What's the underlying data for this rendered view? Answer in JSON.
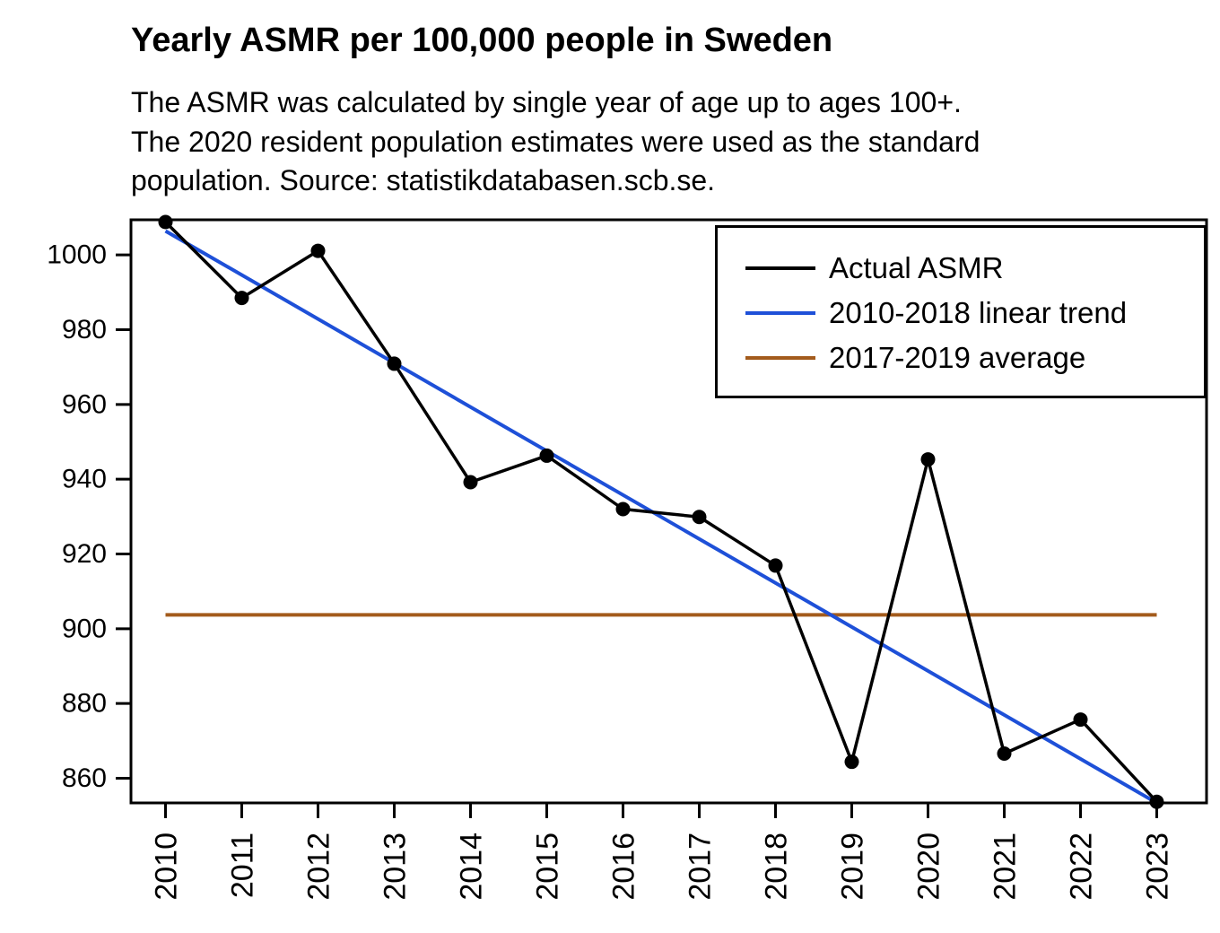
{
  "header": {
    "title": "Yearly ASMR per 100,000 people in Sweden",
    "subtitle_lines": [
      "The ASMR was calculated by single year of age up to ages 100+.",
      "The 2020 resident population estimates were used as the standard",
      "population. Source: statistikdatabasen.scb.se."
    ]
  },
  "chart_data": {
    "type": "line",
    "title": "Yearly ASMR per 100,000 people in Sweden",
    "xlabel": "",
    "ylabel": "",
    "grid": false,
    "legend_position": "top-right",
    "x": [
      2010,
      2011,
      2012,
      2013,
      2014,
      2015,
      2016,
      2017,
      2018,
      2019,
      2020,
      2021,
      2022,
      2023
    ],
    "xticks": [
      "2010",
      "2011",
      "2012",
      "2013",
      "2014",
      "2015",
      "2016",
      "2017",
      "2018",
      "2019",
      "2020",
      "2021",
      "2022",
      "2023"
    ],
    "yticks": [
      860,
      880,
      900,
      920,
      940,
      960,
      980,
      1000
    ],
    "ylim": [
      853.4,
      1009.4
    ],
    "xlim": [
      2010,
      2023
    ],
    "series": [
      {
        "name": "Actual ASMR",
        "color": "#000000",
        "marker": "circle",
        "values": [
          1008.8,
          988.5,
          1001.1,
          970.9,
          939.2,
          946.3,
          932.0,
          929.9,
          916.9,
          864.4,
          945.3,
          866.6,
          875.7,
          853.7
        ]
      },
      {
        "name": "2010-2018 linear trend",
        "color": "#1E50D8",
        "marker": "none",
        "trend_x": [
          2010,
          2023
        ],
        "trend_y": [
          1006.4,
          853.4
        ]
      },
      {
        "name": "2017-2019 average",
        "color": "#A35B1C",
        "marker": "none",
        "trend_x": [
          2010,
          2023
        ],
        "trend_y": [
          903.7,
          903.7
        ]
      }
    ]
  }
}
